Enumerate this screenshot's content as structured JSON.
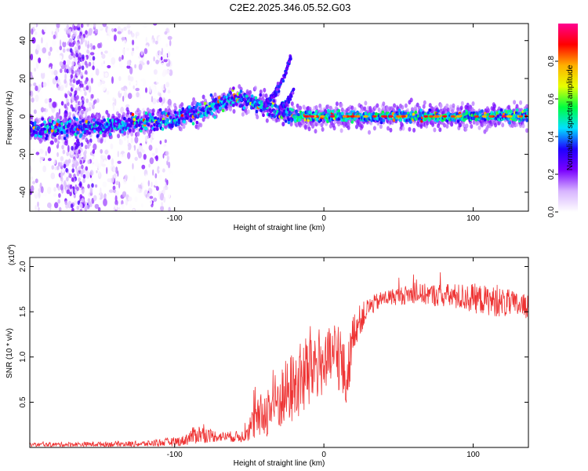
{
  "title": "C2E2.2025.346.05.52.G03",
  "chart_data": [
    {
      "type": "heatmap",
      "title": "C2E2.2025.346.05.52.G03",
      "xlabel": "Height of straight line (km)",
      "ylabel": "Frequency (Hz)",
      "xlim": [
        -197,
        137
      ],
      "ylim": [
        -50,
        49
      ],
      "xticks": [
        -100,
        0,
        100
      ],
      "yticks": [
        -40,
        -20,
        0,
        20,
        40
      ],
      "colorbar": {
        "label": "Normalized spectral amplitude",
        "range": [
          0,
          1
        ],
        "ticks": [
          "0.0",
          "0.2",
          "0.4",
          "0.6",
          "0.8"
        ],
        "tick_values": [
          0,
          0.2,
          0.4,
          0.6,
          0.8
        ],
        "colors": [
          "#ffffff",
          "#d7b4ff",
          "#7a00ff",
          "#1f00ff",
          "#00e0ff",
          "#00ff40",
          "#e8ff00",
          "#ffb000",
          "#ff0000",
          "#ff0090"
        ]
      },
      "ridge": {
        "description_points_x": [
          -197,
          -170,
          -150,
          -120,
          -100,
          -80,
          -65,
          -60,
          -45,
          -35,
          -30,
          -25,
          -20,
          -10,
          0,
          50,
          100,
          137
        ],
        "description_points_y": [
          -7,
          -6,
          -5,
          -3,
          -1,
          3,
          8,
          10,
          7,
          5,
          3,
          1,
          0,
          0,
          0,
          0,
          0,
          0
        ]
      },
      "branches": [
        {
          "x": [
            -32,
            -26,
            -22
          ],
          "y": [
            12,
            22,
            32
          ]
        },
        {
          "x": [
            -40,
            -35,
            -30
          ],
          "y": [
            6,
            10,
            16
          ]
        },
        {
          "x": [
            -30,
            -25,
            -20
          ],
          "y": [
            4,
            7,
            14
          ]
        }
      ]
    },
    {
      "type": "line",
      "xlabel": "Height of straight line (km)",
      "ylabel": "SNR (10 * v/v)",
      "multiplier": "(x10⁴)",
      "multiplier_base": "(x10",
      "multiplier_exp": "4",
      "multiplier_close": ")",
      "color": "#ee3333",
      "xlim": [
        -197,
        137
      ],
      "ylim": [
        0,
        2.1
      ],
      "xticks": [
        -100,
        0,
        100
      ],
      "yticks": [
        0.5,
        1.0,
        1.5,
        2.0
      ],
      "ytick_labels": [
        "0.5",
        "1.0",
        "1.5",
        "2.0"
      ],
      "envelope_x": [
        -197,
        -120,
        -95,
        -85,
        -70,
        -55,
        -45,
        -35,
        -25,
        -15,
        -10,
        -5,
        0,
        10,
        15,
        20,
        30,
        40,
        60,
        80,
        100,
        120,
        137
      ],
      "envelope_mean": [
        0.03,
        0.04,
        0.07,
        0.15,
        0.12,
        0.12,
        0.3,
        0.45,
        0.6,
        0.75,
        0.85,
        0.95,
        0.9,
        1.05,
        0.7,
        1.3,
        1.55,
        1.65,
        1.7,
        1.68,
        1.65,
        1.6,
        1.55
      ],
      "envelope_spread": [
        0.02,
        0.03,
        0.05,
        0.1,
        0.05,
        0.06,
        0.2,
        0.3,
        0.35,
        0.4,
        0.45,
        0.4,
        0.3,
        0.4,
        0.3,
        0.2,
        0.1,
        0.08,
        0.1,
        0.12,
        0.15,
        0.15,
        0.12
      ]
    }
  ]
}
